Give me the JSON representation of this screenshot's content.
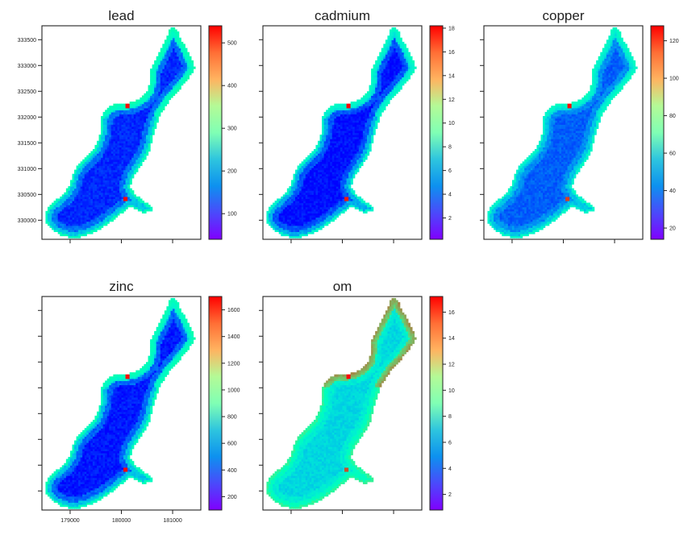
{
  "chart_data": {
    "type": "heatmap",
    "colormap": "rainbow",
    "x_axis": {
      "ticks": [
        179000,
        180000,
        181000
      ],
      "range": [
        178450,
        181550
      ]
    },
    "y_axis": {
      "ticks": [
        330000,
        330500,
        331000,
        331500,
        332000,
        332500,
        333000,
        333500
      ],
      "range": [
        329630,
        333770
      ]
    },
    "panels": [
      {
        "title": "lead",
        "vmin": 40,
        "vmax": 540,
        "cbar_ticks": [
          100,
          200,
          300,
          400,
          500
        ],
        "levels": {
          "interior": 0.05,
          "outer_edge": 0.48,
          "north_edge": 0.52,
          "hotspots": [
            0.98,
            0.99
          ]
        },
        "show_xticklabels": false,
        "show_yticklabels": true
      },
      {
        "title": "cadmium",
        "vmin": 0.2,
        "vmax": 18.2,
        "cbar_ticks": [
          2,
          4,
          6,
          8,
          10,
          12,
          14,
          16,
          18
        ],
        "levels": {
          "interior": 0.02,
          "outer_edge": 0.42,
          "north_edge": 0.46,
          "hotspots": [
            0.99,
            0.97
          ]
        },
        "show_xticklabels": false,
        "show_yticklabels": false
      },
      {
        "title": "copper",
        "vmin": 14,
        "vmax": 128,
        "cbar_ticks": [
          20,
          40,
          60,
          80,
          100,
          120
        ],
        "levels": {
          "interior": 0.12,
          "outer_edge": 0.42,
          "north_edge": 0.46,
          "hotspots": [
            0.98,
            0.92
          ]
        },
        "show_xticklabels": false,
        "show_yticklabels": false
      },
      {
        "title": "zinc",
        "vmin": 100,
        "vmax": 1700,
        "cbar_ticks": [
          200,
          400,
          600,
          800,
          1000,
          1200,
          1400,
          1600
        ],
        "levels": {
          "interior": 0.03,
          "outer_edge": 0.48,
          "north_edge": 0.5,
          "hotspots": [
            0.98,
            0.99
          ]
        },
        "show_xticklabels": true,
        "show_yticklabels": false
      },
      {
        "title": "om",
        "vmin": 0.8,
        "vmax": 17.2,
        "cbar_ticks": [
          2,
          4,
          6,
          8,
          10,
          12,
          14,
          16
        ],
        "levels": {
          "interior": 0.32,
          "outer_edge": 0.58,
          "north_edge": 0.8,
          "hotspots": [
            0.99,
            0.9
          ]
        },
        "show_xticklabels": false,
        "show_yticklabels": false
      }
    ]
  }
}
